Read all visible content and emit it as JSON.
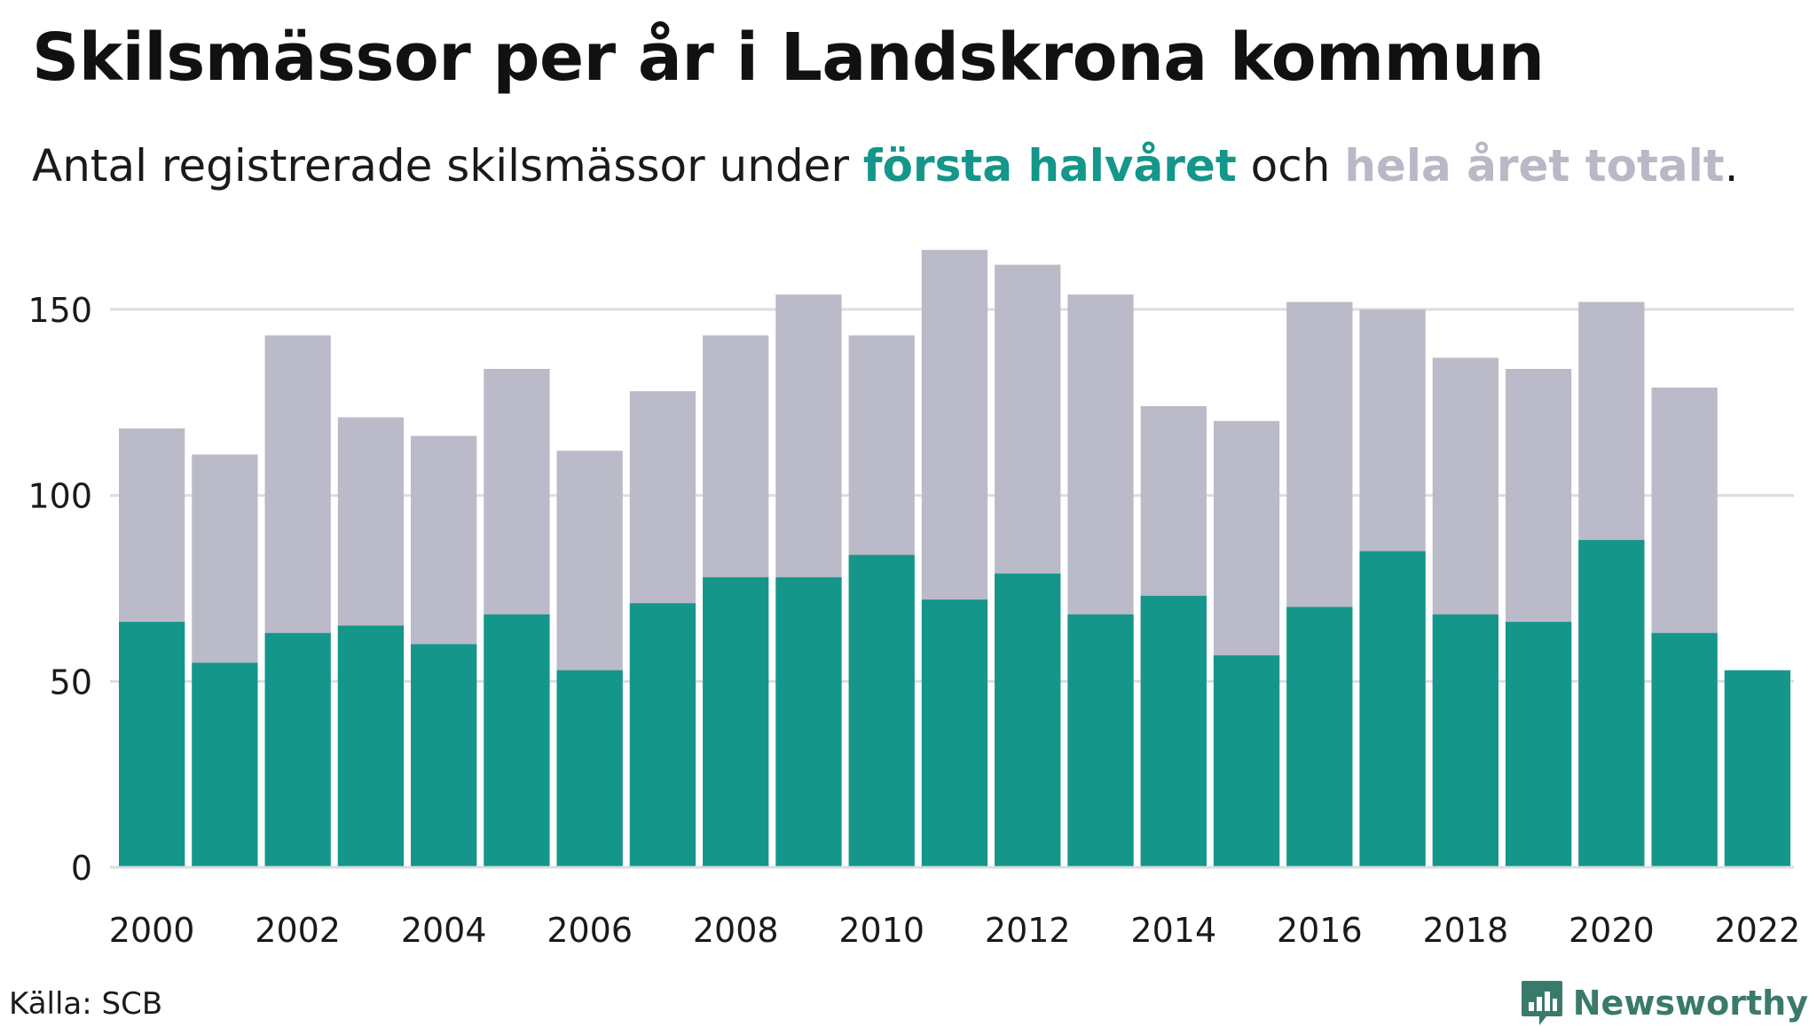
{
  "header": {
    "title": "Skilsmässor per år i Landskrona kommun",
    "subtitle_prefix": "Antal registrerade skilsmässor under ",
    "subtitle_first": "första halvåret",
    "subtitle_mid": " och ",
    "subtitle_total": "hela året totalt",
    "subtitle_suffix": "."
  },
  "footer": {
    "source": "Källa: SCB",
    "brand": "Newsworthy"
  },
  "colors": {
    "first_half": "#14968a",
    "full_year": "#bbbac8",
    "grid": "#dcdce2",
    "logo": "#3a7a6a"
  },
  "chart_data": {
    "type": "bar",
    "categories": [
      2000,
      2001,
      2002,
      2003,
      2004,
      2005,
      2006,
      2007,
      2008,
      2009,
      2010,
      2011,
      2012,
      2013,
      2014,
      2015,
      2016,
      2017,
      2018,
      2019,
      2020,
      2021,
      2022
    ],
    "series": [
      {
        "name": "hela året totalt",
        "color": "#bbbac8",
        "values": [
          118,
          111,
          143,
          121,
          116,
          134,
          112,
          128,
          143,
          154,
          143,
          166,
          162,
          154,
          124,
          120,
          152,
          150,
          137,
          134,
          152,
          129,
          null
        ]
      },
      {
        "name": "första halvåret",
        "color": "#14968a",
        "values": [
          66,
          55,
          63,
          65,
          60,
          68,
          53,
          71,
          78,
          78,
          84,
          72,
          79,
          68,
          73,
          57,
          70,
          85,
          68,
          66,
          88,
          63,
          53
        ]
      }
    ],
    "x_tick_labels": [
      "2000",
      "2002",
      "2004",
      "2006",
      "2008",
      "2010",
      "2012",
      "2014",
      "2016",
      "2018",
      "2020",
      "2022"
    ],
    "y_ticks": [
      0,
      50,
      100,
      150
    ],
    "ylim": [
      0,
      170
    ],
    "grid": true,
    "xlabel": "",
    "ylabel": ""
  }
}
